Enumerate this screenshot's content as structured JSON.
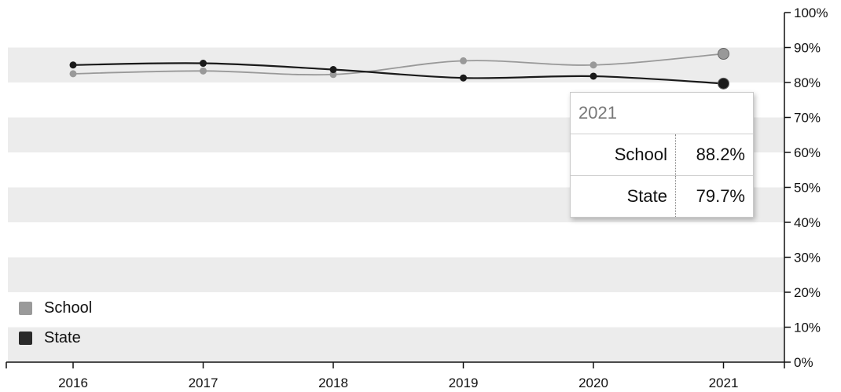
{
  "chart_data": {
    "type": "line",
    "x": [
      "2016",
      "2017",
      "2018",
      "2019",
      "2020",
      "2021"
    ],
    "series": [
      {
        "name": "School",
        "values": [
          82.5,
          83.3,
          82.3,
          86.2,
          85.0,
          88.2
        ],
        "color": "#999999"
      },
      {
        "name": "State",
        "values": [
          85.0,
          85.5,
          83.7,
          81.3,
          81.8,
          79.7
        ],
        "color": "#1a1a1a"
      }
    ],
    "y_ticks": [
      "0%",
      "10%",
      "20%",
      "30%",
      "40%",
      "50%",
      "60%",
      "70%",
      "80%",
      "90%",
      "100%"
    ],
    "ylim": [
      0,
      100
    ],
    "grid": "alternating horizontal bands",
    "legend_position": "bottom-left",
    "xlabel": "",
    "ylabel": "",
    "title": ""
  },
  "tooltip": {
    "title": "2021",
    "rows": [
      {
        "name": "School",
        "value": "88.2%"
      },
      {
        "name": "State",
        "value": "79.7%"
      }
    ]
  }
}
